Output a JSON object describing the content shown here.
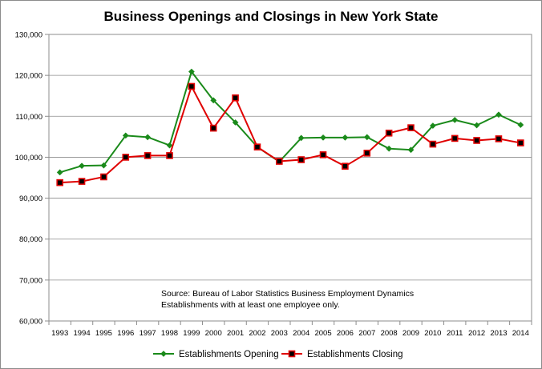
{
  "chart_data": {
    "type": "line",
    "title": "Business Openings and Closings in New York State",
    "xlabel": "",
    "ylabel": "",
    "categories": [
      "1993",
      "1994",
      "1995",
      "1996",
      "1997",
      "1998",
      "1999",
      "2000",
      "2001",
      "2002",
      "2003",
      "2004",
      "2005",
      "2006",
      "2007",
      "2008",
      "2009",
      "2010",
      "2011",
      "2012",
      "2013",
      "2014"
    ],
    "ylim": [
      60000,
      130000
    ],
    "yticks": [
      "60,000",
      "70,000",
      "80,000",
      "90,000",
      "100,000",
      "110,000",
      "120,000",
      "130,000"
    ],
    "grid": true,
    "legend_position": "bottom",
    "series": [
      {
        "name": "Establishments Opening",
        "color": "#1a8a1a",
        "marker": "diamond",
        "values": [
          96300,
          97900,
          98000,
          105300,
          104900,
          102900,
          120900,
          113900,
          108500,
          102500,
          98900,
          104700,
          104800,
          104800,
          104900,
          102100,
          101800,
          107700,
          109100,
          107800,
          110400,
          107900
        ]
      },
      {
        "name": "Establishments Closing",
        "color": "#e00000",
        "marker": "square",
        "values": [
          93800,
          94100,
          95200,
          100000,
          100400,
          100400,
          117300,
          107100,
          114500,
          102500,
          99000,
          99400,
          100600,
          97800,
          101000,
          105900,
          107200,
          103200,
          104600,
          104100,
          104500,
          103500
        ]
      }
    ],
    "annotation": [
      "Source:  Bureau of Labor Statistics Business Employment Dynamics",
      "Establishments with at least one employee only."
    ]
  }
}
